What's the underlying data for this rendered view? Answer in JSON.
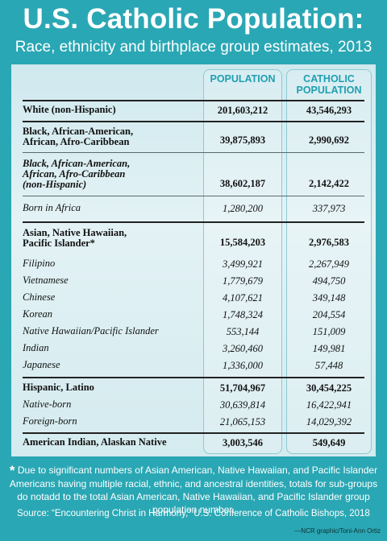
{
  "title": "U.S. Catholic Population:",
  "subtitle": "Race, ethnicity and birthplace group estimates, 2013",
  "columns": {
    "population": "POPULATION",
    "catholic_line1": "CATHOLIC",
    "catholic_line2": "POPULATION"
  },
  "rows": [
    {
      "label1": "White (non-Hispanic)",
      "label2": "",
      "label3": "",
      "population": "201,603,212",
      "catholic": "43,546,293"
    },
    {
      "label1": "Black, African-American,",
      "label2": "African, Afro-Caribbean",
      "label3": "",
      "population": "39,875,893",
      "catholic": "2,990,692"
    },
    {
      "label1": "Black, African-American,",
      "label2": "African, Afro-Caribbean",
      "label3": "(non-Hispanic)",
      "population": "38,602,187",
      "catholic": "2,142,422"
    },
    {
      "label1": "Born in Africa",
      "label2": "",
      "label3": "",
      "population": "1,280,200",
      "catholic": "337,973"
    },
    {
      "label1": "Asian, Native Hawaiian,",
      "label2": "Pacific Islander*",
      "label3": "",
      "population": "15,584,203",
      "catholic": "2,976,583"
    },
    {
      "label1": "Filipino",
      "label2": "",
      "label3": "",
      "population": "3,499,921",
      "catholic": "2,267,949"
    },
    {
      "label1": "Vietnamese",
      "label2": "",
      "label3": "",
      "population": "1,779,679",
      "catholic": "494,750"
    },
    {
      "label1": "Chinese",
      "label2": "",
      "label3": "",
      "population": "4,107,621",
      "catholic": "349,148"
    },
    {
      "label1": "Korean",
      "label2": "",
      "label3": "",
      "population": "1,748,324",
      "catholic": "204,554"
    },
    {
      "label1": "Native Hawaiian/Pacific Islander",
      "label2": "",
      "label3": "",
      "population": "553,144",
      "catholic": "151,009"
    },
    {
      "label1": "Indian",
      "label2": "",
      "label3": "",
      "population": "3,260,460",
      "catholic": "149,981"
    },
    {
      "label1": "Japanese",
      "label2": "",
      "label3": "",
      "population": "1,336,000",
      "catholic": "57,448"
    },
    {
      "label1": "Hispanic, Latino",
      "label2": "",
      "label3": "",
      "population": "51,704,967",
      "catholic": "30,454,225"
    },
    {
      "label1": "Native-born",
      "label2": "",
      "label3": "",
      "population": "30,639,814",
      "catholic": "16,422,941"
    },
    {
      "label1": "Foreign-born",
      "label2": "",
      "label3": "",
      "population": "21,065,153",
      "catholic": "14,029,392"
    },
    {
      "label1": "American Indian, Alaskan Native",
      "label2": "",
      "label3": "",
      "population": "3,003,546",
      "catholic": "549,649"
    }
  ],
  "footnote": {
    "star": "*",
    "text": "Due to significant numbers of Asian American, Native Hawaiian, and Pacific Islander Americans having multiple racial, ethnic, and ancestral identities, totals for sub-groups do notadd to the total Asian American, Native Hawaiian, and Pacific Islander group population number."
  },
  "source": "Source: “Encountering Christ in Harmony,” U.S. Conference of Catholic Bishops, 2018",
  "credit": "—NCR graphic/Toni-Ann Ortiz",
  "colors": {
    "background": "#2aa7b4",
    "header_text": "#1f9fb0",
    "panel": "#d9eef1"
  }
}
